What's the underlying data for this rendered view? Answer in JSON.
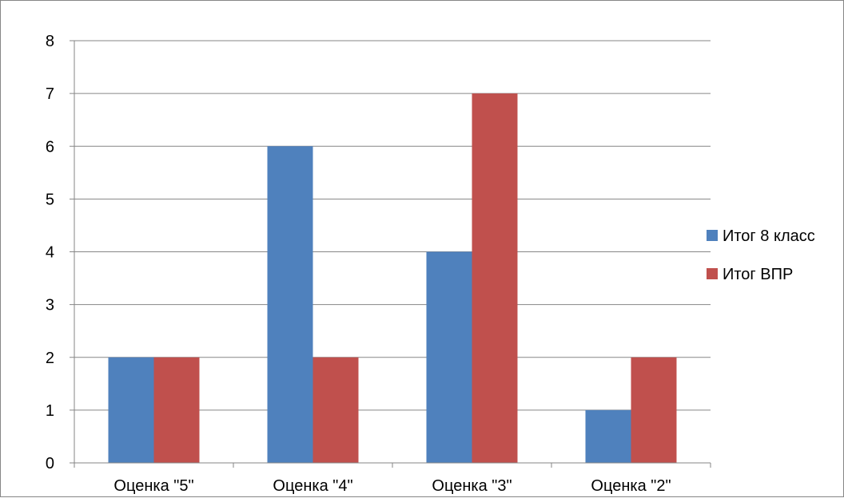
{
  "chart_data": {
    "type": "bar",
    "title": "",
    "xlabel": "",
    "ylabel": "",
    "categories": [
      "Оценка \"5\"",
      "Оценка \"4\"",
      "Оценка \"3\"",
      "Оценка \"2\""
    ],
    "series": [
      {
        "name": "Итог 8 класс",
        "color": "#4f81bd",
        "values": [
          2,
          6,
          4,
          1
        ]
      },
      {
        "name": "Итог ВПР",
        "color": "#c0504d",
        "values": [
          2,
          2,
          7,
          2
        ]
      }
    ],
    "ylim": [
      0,
      8
    ],
    "yticks": [
      0,
      1,
      2,
      3,
      4,
      5,
      6,
      7,
      8
    ],
    "grid": true,
    "gridline_color": "#868686",
    "legend_position": "right"
  }
}
